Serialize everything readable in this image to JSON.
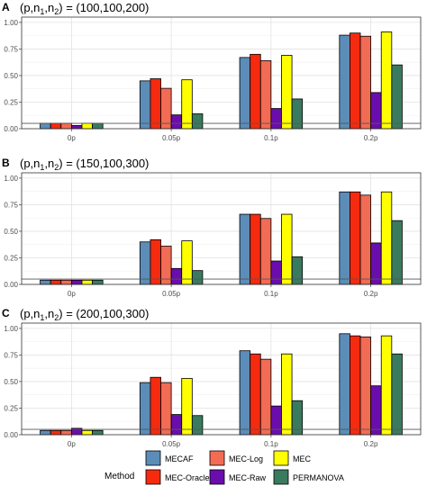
{
  "chart_data": [
    {
      "type": "bar",
      "panel_letter": "A",
      "title_prefix": "(p,n",
      "sub1": "1",
      "title_mid": ",n",
      "sub2": "2",
      "title_suffix": ") = (100,100,200)",
      "categories": [
        "0p",
        "0.05p",
        "0.1p",
        "0.2p"
      ],
      "ylim": [
        0,
        1.05
      ],
      "yticks": [
        "0.00",
        "0.25",
        "0.50",
        "0.75",
        "1.00"
      ],
      "reference_line": 0.05,
      "series": [
        {
          "name": "MECAF",
          "values": [
            0.05,
            0.45,
            0.67,
            0.88
          ]
        },
        {
          "name": "MEC-Oracle",
          "values": [
            0.05,
            0.47,
            0.7,
            0.9
          ]
        },
        {
          "name": "MEC-Log",
          "values": [
            0.05,
            0.38,
            0.64,
            0.87
          ]
        },
        {
          "name": "MEC-Raw",
          "values": [
            0.03,
            0.13,
            0.19,
            0.34
          ]
        },
        {
          "name": "MEC",
          "values": [
            0.05,
            0.46,
            0.69,
            0.91
          ]
        },
        {
          "name": "PERMANOVA",
          "values": [
            0.05,
            0.14,
            0.28,
            0.6
          ]
        }
      ]
    },
    {
      "type": "bar",
      "panel_letter": "B",
      "title_prefix": "(p,n",
      "sub1": "1",
      "title_mid": ",n",
      "sub2": "2",
      "title_suffix": ") = (150,100,300)",
      "categories": [
        "0p",
        "0.05p",
        "0.1p",
        "0.2p"
      ],
      "ylim": [
        0,
        1.05
      ],
      "yticks": [
        "0.00",
        "0.25",
        "0.50",
        "0.75",
        "1.00"
      ],
      "reference_line": 0.05,
      "series": [
        {
          "name": "MECAF",
          "values": [
            0.04,
            0.4,
            0.66,
            0.87
          ]
        },
        {
          "name": "MEC-Oracle",
          "values": [
            0.04,
            0.42,
            0.66,
            0.87
          ]
        },
        {
          "name": "MEC-Log",
          "values": [
            0.04,
            0.36,
            0.62,
            0.84
          ]
        },
        {
          "name": "MEC-Raw",
          "values": [
            0.04,
            0.15,
            0.22,
            0.39
          ]
        },
        {
          "name": "MEC",
          "values": [
            0.04,
            0.41,
            0.66,
            0.87
          ]
        },
        {
          "name": "PERMANOVA",
          "values": [
            0.04,
            0.13,
            0.26,
            0.6
          ]
        }
      ]
    },
    {
      "type": "bar",
      "panel_letter": "C",
      "title_prefix": "(p,n",
      "sub1": "1",
      "title_mid": ",n",
      "sub2": "2",
      "title_suffix": ") = (200,100,300)",
      "categories": [
        "0p",
        "0.05p",
        "0.1p",
        "0.2p"
      ],
      "ylim": [
        0,
        1.05
      ],
      "yticks": [
        "0.00",
        "0.25",
        "0.50",
        "0.75",
        "1.00"
      ],
      "reference_line": 0.05,
      "series": [
        {
          "name": "MECAF",
          "values": [
            0.04,
            0.49,
            0.79,
            0.95
          ]
        },
        {
          "name": "MEC-Oracle",
          "values": [
            0.04,
            0.54,
            0.76,
            0.93
          ]
        },
        {
          "name": "MEC-Log",
          "values": [
            0.04,
            0.49,
            0.71,
            0.92
          ]
        },
        {
          "name": "MEC-Raw",
          "values": [
            0.06,
            0.19,
            0.27,
            0.46
          ]
        },
        {
          "name": "MEC",
          "values": [
            0.04,
            0.53,
            0.76,
            0.93
          ]
        },
        {
          "name": "PERMANOVA",
          "values": [
            0.04,
            0.18,
            0.32,
            0.76
          ]
        }
      ]
    }
  ],
  "legend": {
    "title": "Method",
    "placement": "bottom",
    "items": [
      {
        "name": "MECAF",
        "color": "#5b8db8"
      },
      {
        "name": "MEC-Log",
        "color": "#f26b55"
      },
      {
        "name": "MEC",
        "color": "#ffff00"
      },
      {
        "name": "MEC-Oracle",
        "color": "#f52a0e"
      },
      {
        "name": "MEC-Raw",
        "color": "#6a0dad"
      },
      {
        "name": "PERMANOVA",
        "color": "#3a7a5e"
      }
    ]
  },
  "series_colors": {
    "MECAF": "#5b8db8",
    "MEC-Oracle": "#f52a0e",
    "MEC-Log": "#f26b55",
    "MEC-Raw": "#6a0dad",
    "MEC": "#ffff00",
    "PERMANOVA": "#3a7a5e"
  },
  "grid": true
}
